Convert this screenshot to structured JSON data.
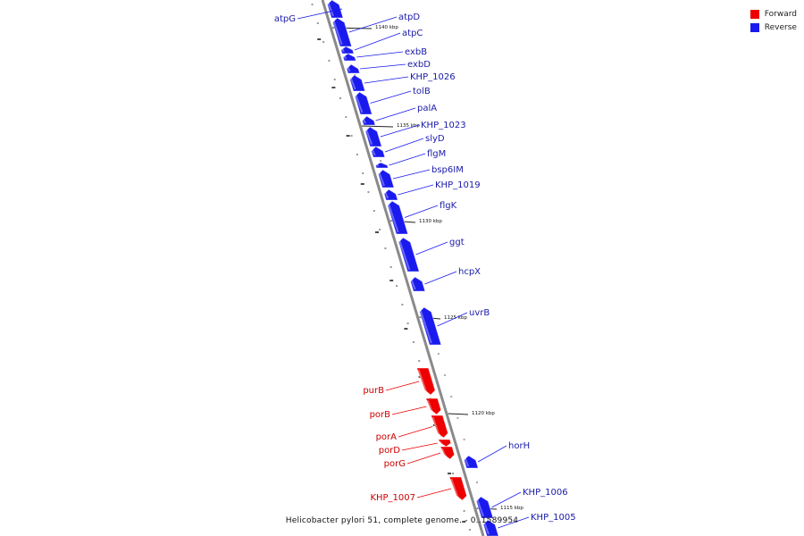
{
  "caption": "Helicobacter pylori 51, complete genome. - 0..1589954",
  "legend": [
    {
      "label": "Forward",
      "color": "#ee0000"
    },
    {
      "label": "Reverse",
      "color": "#1a1aee"
    }
  ],
  "colors": {
    "forward": "#ee0000",
    "reverse": "#1a1aee",
    "axis": "#888888"
  },
  "ticks": [
    {
      "label": "1140 kbp"
    },
    {
      "label": "1135 kbp"
    },
    {
      "label": "1130 kbp"
    },
    {
      "label": "1125 kbp"
    },
    {
      "label": "1120 kbp"
    },
    {
      "label": "1115 kbp"
    }
  ],
  "genes": [
    {
      "name": "atpG",
      "strand": "reverse"
    },
    {
      "name": "atpD",
      "strand": "reverse"
    },
    {
      "name": "atpC",
      "strand": "reverse"
    },
    {
      "name": "exbB",
      "strand": "reverse"
    },
    {
      "name": "exbD",
      "strand": "reverse"
    },
    {
      "name": "KHP_1026",
      "strand": "reverse"
    },
    {
      "name": "tolB",
      "strand": "reverse"
    },
    {
      "name": "palA",
      "strand": "reverse"
    },
    {
      "name": "KHP_1023",
      "strand": "reverse"
    },
    {
      "name": "slyD",
      "strand": "reverse"
    },
    {
      "name": "flgM",
      "strand": "reverse"
    },
    {
      "name": "bsp6IM",
      "strand": "reverse"
    },
    {
      "name": "KHP_1019",
      "strand": "reverse"
    },
    {
      "name": "flgK",
      "strand": "reverse"
    },
    {
      "name": "ggt",
      "strand": "reverse"
    },
    {
      "name": "hcpX",
      "strand": "reverse"
    },
    {
      "name": "uvrB",
      "strand": "reverse"
    },
    {
      "name": "purB",
      "strand": "forward"
    },
    {
      "name": "porB",
      "strand": "forward"
    },
    {
      "name": "porA",
      "strand": "forward"
    },
    {
      "name": "porD",
      "strand": "forward"
    },
    {
      "name": "porG",
      "strand": "forward"
    },
    {
      "name": "horH",
      "strand": "reverse"
    },
    {
      "name": "KHP_1007",
      "strand": "forward"
    },
    {
      "name": "KHP_1006",
      "strand": "reverse"
    },
    {
      "name": "KHP_1005",
      "strand": "reverse"
    }
  ]
}
